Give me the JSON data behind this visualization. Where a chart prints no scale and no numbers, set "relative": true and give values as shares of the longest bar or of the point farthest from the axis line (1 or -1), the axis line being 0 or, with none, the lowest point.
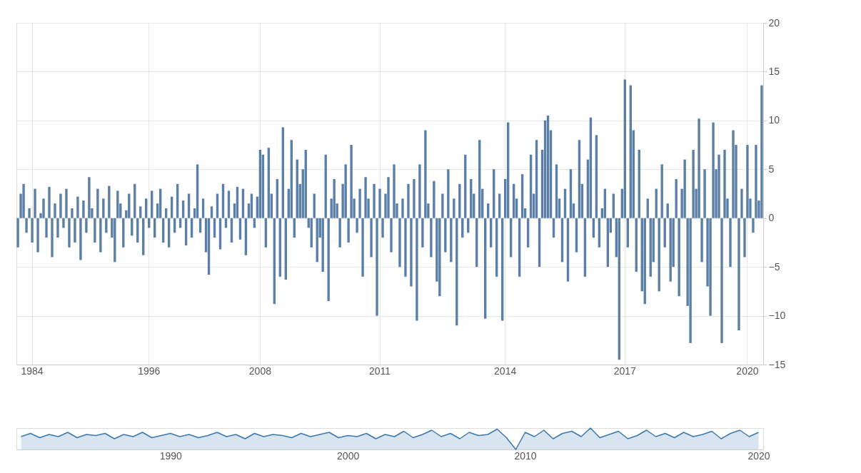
{
  "chart_data": [
    {
      "type": "bar",
      "categories": [
        null,
        null,
        null,
        null,
        null,
        "1984",
        null,
        null,
        null,
        null,
        null,
        null,
        null,
        null,
        null,
        null,
        null,
        null,
        null,
        null,
        null,
        null,
        null,
        null,
        null,
        null,
        null,
        null,
        null,
        null,
        null,
        null,
        null,
        null,
        null,
        null,
        null,
        null,
        null,
        null,
        null,
        null,
        null,
        null,
        null,
        null,
        "1996",
        null,
        null,
        null,
        null,
        null,
        null,
        null,
        null,
        null,
        null,
        null,
        null,
        null,
        null,
        null,
        null,
        null,
        null,
        null,
        null,
        null,
        null,
        null,
        null,
        null,
        null,
        null,
        null,
        null,
        null,
        null,
        null,
        null,
        null,
        null,
        null,
        null,
        null,
        "2008",
        null,
        null,
        null,
        null,
        null,
        null,
        null,
        null,
        null,
        null,
        null,
        null,
        null,
        null,
        null,
        null,
        null,
        null,
        null,
        null,
        null,
        null,
        null,
        null,
        null,
        null,
        null,
        null,
        null,
        null,
        null,
        null,
        null,
        null,
        null,
        null,
        null,
        null,
        null,
        null,
        null,
        "2011",
        null,
        null,
        null,
        null,
        null,
        null,
        null,
        null,
        null,
        null,
        null,
        null,
        null,
        null,
        null,
        null,
        null,
        null,
        null,
        null,
        null,
        null,
        null,
        null,
        null,
        null,
        null,
        null,
        null,
        null,
        null,
        null,
        null,
        null,
        null,
        null,
        null,
        null,
        null,
        null,
        null,
        null,
        null,
        "2014",
        null,
        null,
        null,
        null,
        null,
        null,
        null,
        null,
        null,
        null,
        null,
        null,
        null,
        null,
        null,
        null,
        null,
        null,
        null,
        null,
        null,
        null,
        null,
        null,
        null,
        null,
        null,
        null,
        null,
        null,
        null,
        null,
        null,
        null,
        null,
        null,
        null,
        null,
        null,
        null,
        null,
        "2017",
        null,
        null,
        null,
        null,
        null,
        null,
        null,
        null,
        null,
        null,
        null,
        null,
        null,
        null,
        null,
        null,
        null,
        null,
        null,
        null,
        null,
        null,
        null,
        null,
        null,
        null,
        null,
        null,
        null,
        null,
        null,
        null,
        null,
        null,
        null,
        null,
        null,
        null,
        null,
        null,
        null,
        null,
        "2020",
        null,
        null,
        null,
        null,
        null
      ],
      "series": [
        {
          "color": "#5b7fa6",
          "values": [
            -3,
            2.5,
            3.5,
            -1.5,
            1,
            -2.5,
            3,
            -3.5,
            0.5,
            2,
            -2,
            3.2,
            -4,
            1.5,
            -2,
            2.5,
            -1,
            3,
            -3,
            1,
            -2.5,
            2.2,
            -4.3,
            1.8,
            -1.5,
            4.2,
            1,
            -2.5,
            3,
            -3.5,
            2,
            -1.5,
            3.3,
            -2,
            -4.5,
            2.8,
            1.5,
            -3,
            0.8,
            2.5,
            -1.8,
            3.5,
            -2.5,
            1.2,
            -3.8,
            2,
            -1,
            2.8,
            -2,
            1.5,
            3,
            -2.5,
            1,
            -3,
            2.2,
            -1.5,
            3.5,
            -1,
            1.8,
            -2.8,
            2.5,
            -2,
            1,
            5.5,
            -1.5,
            2,
            -3.5,
            -5.8,
            1.2,
            -2,
            2.5,
            -3.2,
            3.5,
            -1,
            2.8,
            -2.5,
            1.5,
            3.2,
            -2.2,
            3,
            -3.8,
            1.5,
            2.5,
            -1,
            2.2,
            7,
            6.5,
            -3,
            7.2,
            2.5,
            -8.8,
            4,
            -6,
            9.3,
            -6.3,
            3,
            8,
            -2,
            6,
            3.5,
            5,
            7,
            -1,
            -3,
            2.5,
            -4.5,
            -2,
            -5.5,
            6.5,
            -8.5,
            2,
            4,
            1.5,
            -3,
            3.5,
            5.5,
            -2.5,
            7.5,
            2,
            -1.5,
            3,
            -6,
            4.2,
            2,
            -4,
            3.5,
            -10,
            3,
            -2,
            2.5,
            4.2,
            -3.5,
            5.5,
            1.5,
            -5,
            2,
            -6,
            3.5,
            -7,
            4,
            -10.5,
            5.5,
            -3,
            9,
            1.5,
            -4,
            3.8,
            -6.5,
            -8,
            2.5,
            -3.5,
            5,
            -4.5,
            2,
            -11,
            3.5,
            -2,
            6.5,
            -1.5,
            4,
            2.5,
            -5,
            8,
            3,
            -10.3,
            1.5,
            -3,
            5,
            -6,
            2.5,
            -10.5,
            4,
            9.8,
            -4,
            3.5,
            2,
            -6,
            4.5,
            1,
            -3,
            6.5,
            2.5,
            8,
            -5,
            7,
            10,
            10.5,
            9,
            -2,
            5.5,
            2,
            -4.5,
            3,
            -6.5,
            5,
            1.5,
            -3.5,
            8,
            3.5,
            -6,
            6,
            10.3,
            -2,
            8.5,
            -3,
            1,
            3,
            -5,
            -1.5,
            2.5,
            -4,
            -14.5,
            3,
            14.2,
            -3,
            13.6,
            9,
            -5.5,
            7,
            -7.5,
            -8.8,
            2,
            -6,
            -4.5,
            3,
            -7.5,
            5.5,
            -3,
            1.5,
            -6.5,
            -5,
            4,
            -8,
            3,
            6,
            -9,
            -12.8,
            7,
            3,
            10.2,
            -4.5,
            5,
            -7,
            -10,
            9.8,
            5,
            6.5,
            -12.8,
            7,
            2,
            -5,
            9,
            7.5,
            -11.5,
            3,
            -4,
            7.5,
            2,
            -1.5,
            7.5,
            1.8,
            13.6
          ]
        }
      ],
      "ylim": [
        -15,
        20
      ],
      "yticks": [
        -15,
        -10,
        -5,
        0,
        5,
        10,
        15,
        20
      ],
      "grid": true
    },
    {
      "type": "area",
      "relative": true,
      "categories": [
        null,
        null,
        null,
        null,
        null,
        null,
        null,
        null,
        null,
        null,
        null,
        null,
        null,
        null,
        null,
        null,
        "1990",
        null,
        null,
        null,
        null,
        null,
        null,
        null,
        null,
        null,
        null,
        null,
        null,
        null,
        null,
        null,
        null,
        null,
        null,
        "2000",
        null,
        null,
        null,
        null,
        null,
        null,
        null,
        null,
        null,
        null,
        null,
        null,
        null,
        null,
        null,
        null,
        null,
        null,
        "2010",
        null,
        null,
        null,
        null,
        null,
        null,
        null,
        null,
        null,
        null,
        null,
        null,
        null,
        null,
        null,
        null,
        null,
        null,
        null,
        null,
        null,
        null,
        null,
        null,
        "2020"
      ],
      "series": [
        {
          "color": "#3a78b0",
          "values": [
            0.6,
            0.75,
            0.55,
            0.7,
            0.6,
            0.8,
            0.55,
            0.7,
            0.65,
            0.75,
            0.5,
            0.7,
            0.6,
            0.8,
            0.55,
            0.65,
            0.75,
            0.6,
            0.7,
            0.55,
            0.65,
            0.8,
            0.6,
            0.7,
            0.5,
            0.75,
            0.6,
            0.7,
            0.65,
            0.55,
            0.75,
            0.6,
            0.7,
            0.8,
            0.55,
            0.65,
            0.6,
            0.75,
            0.5,
            0.7,
            0.6,
            0.85,
            0.55,
            0.7,
            0.9,
            0.6,
            0.75,
            0.5,
            0.8,
            0.65,
            0.7,
            0.95,
            0.55,
            0,
            0.8,
            0.6,
            0.9,
            0.5,
            0.75,
            0.85,
            0.6,
            1,
            0.55,
            0.7,
            0.85,
            0.5,
            0.65,
            0.9,
            0.6,
            0.75,
            0.55,
            0.8,
            0.6,
            0.7,
            0.85,
            0.5,
            0.75,
            0.9,
            0.6,
            0.8
          ]
        }
      ]
    }
  ]
}
